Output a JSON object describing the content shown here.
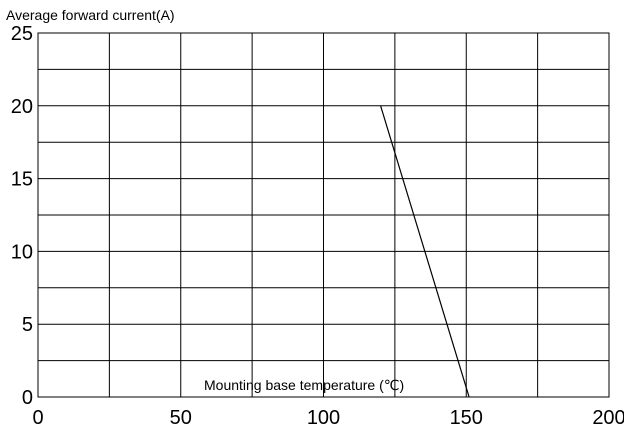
{
  "chart_data": {
    "type": "line",
    "title": "",
    "ylabel": "Average forward current(A)",
    "xlabel": "Mounting base temperature (℃)",
    "xlim": [
      0,
      200
    ],
    "ylim": [
      0,
      25
    ],
    "x_ticks": [
      0,
      50,
      100,
      150,
      200
    ],
    "y_ticks": [
      0,
      5,
      10,
      15,
      20,
      25
    ],
    "x_tick_labels": [
      "0",
      "50",
      "100",
      "150",
      "200"
    ],
    "y_tick_labels": [
      "0",
      "5",
      "10",
      "15",
      "20",
      "25"
    ],
    "grid": true,
    "x_grid_step": 25,
    "y_grid_step": 2.5,
    "series": [
      {
        "x": [
          120,
          151
        ],
        "y": [
          20,
          0
        ]
      }
    ],
    "colors": {
      "line": "#000000",
      "grid": "#000000",
      "background": "#ffffff"
    }
  }
}
